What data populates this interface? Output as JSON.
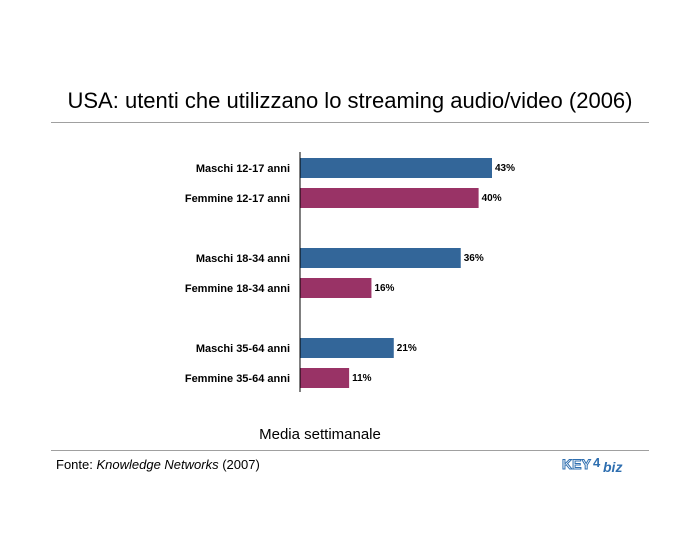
{
  "title": "USA: utenti che utilizzano lo streaming audio/video (2006)",
  "caption": "Media settimanale",
  "source": {
    "prefix": "Fonte: ",
    "name": "Knowledge Networks",
    "year": " (2007)"
  },
  "logo": {
    "text_left": "KEY",
    "digit": "4",
    "text_right": "biz",
    "color": "#2f6fb0"
  },
  "colors": {
    "male": "#336699",
    "female": "#993366"
  },
  "chart_data": {
    "type": "bar",
    "orientation": "horizontal",
    "title": "USA: utenti che utilizzano lo streaming audio/video (2006)",
    "xlabel": "Media settimanale",
    "ylabel": "",
    "xlim": [
      0,
      50
    ],
    "grid": false,
    "categories": [
      "Maschi 12-17 anni",
      "Femmine 12-17 anni",
      "Maschi 18-34 anni",
      "Femmine 18-34 anni",
      "Maschi 35-64 anni",
      "Femmine 35-64 anni"
    ],
    "values": [
      43,
      40,
      36,
      16,
      21,
      11
    ],
    "value_labels": [
      "43%",
      "40%",
      "36%",
      "16%",
      "21%",
      "11%"
    ],
    "groups": [
      "male",
      "female",
      "male",
      "female",
      "male",
      "female"
    ]
  }
}
